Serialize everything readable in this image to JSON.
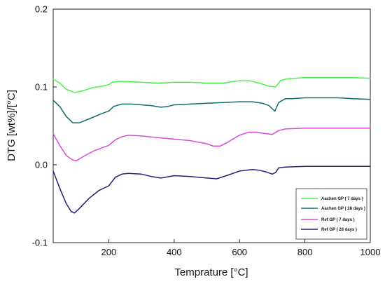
{
  "chart_data": {
    "type": "line",
    "title": "",
    "xlabel": "Temprature [°C]",
    "ylabel": "DTG  [wt%]/[°C]",
    "xlim": [
      30,
      1000
    ],
    "ylim": [
      -0.1,
      0.2
    ],
    "xticks": [
      200,
      400,
      600,
      800,
      1000
    ],
    "xtick_labels": [
      "200",
      "400",
      "600",
      "800",
      "1000"
    ],
    "yticks": [
      -0.1,
      0.0,
      0.1,
      0.2
    ],
    "ytick_labels": [
      "-0.1",
      "0.0",
      "0.1",
      "0.2"
    ],
    "grid": false,
    "legend_position": "bottom-right",
    "series": [
      {
        "name": "Aachen GP ( 7 days )",
        "color": "#4cf24c",
        "x": [
          30,
          50,
          70,
          95,
          120,
          150,
          180,
          200,
          210,
          230,
          260,
          300,
          350,
          400,
          450,
          500,
          550,
          600,
          630,
          660,
          690,
          710,
          725,
          740,
          760,
          800,
          850,
          900,
          950,
          1000
        ],
        "y": [
          0.11,
          0.105,
          0.097,
          0.093,
          0.095,
          0.099,
          0.101,
          0.103,
          0.106,
          0.107,
          0.107,
          0.106,
          0.105,
          0.106,
          0.106,
          0.105,
          0.105,
          0.108,
          0.108,
          0.105,
          0.101,
          0.1,
          0.108,
          0.11,
          0.111,
          0.112,
          0.112,
          0.112,
          0.112,
          0.111
        ]
      },
      {
        "name": "Aachen GP ( 28 days )",
        "color": "#0f6e6e",
        "x": [
          30,
          50,
          70,
          90,
          110,
          140,
          180,
          200,
          215,
          240,
          270,
          300,
          330,
          360,
          380,
          400,
          450,
          500,
          550,
          600,
          640,
          670,
          690,
          708,
          720,
          740,
          760,
          800,
          850,
          900,
          950,
          1000
        ],
        "y": [
          0.083,
          0.075,
          0.062,
          0.054,
          0.054,
          0.059,
          0.066,
          0.069,
          0.075,
          0.078,
          0.078,
          0.077,
          0.076,
          0.074,
          0.075,
          0.077,
          0.078,
          0.079,
          0.08,
          0.081,
          0.081,
          0.079,
          0.076,
          0.069,
          0.08,
          0.085,
          0.085,
          0.086,
          0.086,
          0.086,
          0.085,
          0.084
        ]
      },
      {
        "name": "Ref GP ( 7 days )",
        "color": "#d94ad9",
        "x": [
          30,
          50,
          70,
          90,
          100,
          120,
          150,
          180,
          200,
          220,
          240,
          260,
          300,
          350,
          400,
          450,
          500,
          520,
          540,
          560,
          600,
          630,
          650,
          680,
          700,
          720,
          740,
          800,
          850,
          900,
          950,
          1000
        ],
        "y": [
          0.04,
          0.025,
          0.012,
          0.006,
          0.005,
          0.01,
          0.017,
          0.022,
          0.025,
          0.032,
          0.036,
          0.038,
          0.037,
          0.035,
          0.033,
          0.031,
          0.027,
          0.024,
          0.024,
          0.028,
          0.038,
          0.042,
          0.042,
          0.04,
          0.039,
          0.044,
          0.046,
          0.047,
          0.047,
          0.047,
          0.047,
          0.047
        ]
      },
      {
        "name": "Ref GP ( 28 days )",
        "color": "#2b1a7a",
        "x": [
          30,
          50,
          70,
          85,
          95,
          110,
          140,
          170,
          200,
          220,
          240,
          260,
          300,
          330,
          360,
          400,
          450,
          500,
          530,
          560,
          600,
          640,
          660,
          680,
          700,
          710,
          720,
          740,
          800,
          850,
          900,
          950,
          1000
        ],
        "y": [
          -0.008,
          -0.03,
          -0.05,
          -0.06,
          -0.062,
          -0.056,
          -0.043,
          -0.033,
          -0.027,
          -0.016,
          -0.012,
          -0.011,
          -0.012,
          -0.015,
          -0.017,
          -0.014,
          -0.015,
          -0.017,
          -0.018,
          -0.014,
          -0.008,
          -0.006,
          -0.007,
          -0.009,
          -0.012,
          -0.01,
          -0.004,
          -0.003,
          -0.002,
          -0.002,
          -0.002,
          -0.002,
          -0.002
        ]
      }
    ]
  }
}
